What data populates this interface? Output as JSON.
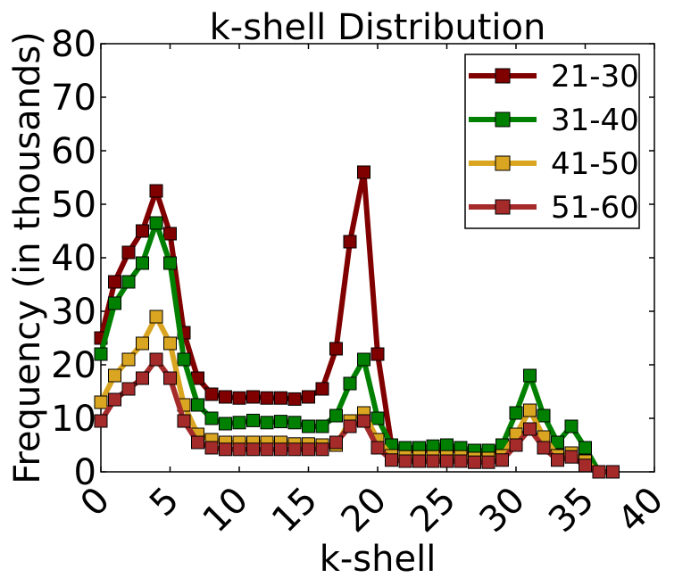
{
  "chart_data": {
    "type": "line",
    "title": "k-shell Distribution",
    "xlabel": "k-shell",
    "ylabel": "Frequency (in thousands)",
    "xlim": [
      0,
      40
    ],
    "ylim": [
      0,
      80
    ],
    "xticks": [
      "0",
      "5",
      "10",
      "15",
      "20",
      "25",
      "30",
      "35",
      "40"
    ],
    "yticks": [
      "0",
      "10",
      "20",
      "30",
      "40",
      "50",
      "60",
      "70",
      "80"
    ],
    "grid": false,
    "legend_position": "top-right",
    "x": [
      0,
      1,
      2,
      3,
      4,
      5,
      6,
      7,
      8,
      9,
      10,
      11,
      12,
      13,
      14,
      15,
      16,
      17,
      18,
      19,
      20,
      21,
      22,
      23,
      24,
      25,
      26,
      27,
      28,
      29,
      30,
      31,
      32,
      33,
      34,
      35,
      36,
      37
    ],
    "series": [
      {
        "name": "21-30",
        "color": "#800000",
        "values": [
          25,
          35.5,
          41,
          45,
          52.5,
          44.5,
          26,
          17.5,
          14.5,
          14,
          13.8,
          14,
          13.8,
          13.8,
          13.6,
          14,
          15.5,
          23,
          43,
          56,
          22,
          5,
          4,
          4,
          4,
          4,
          4,
          3.5,
          3.5,
          4,
          6,
          8,
          5,
          3,
          3,
          2,
          0,
          0
        ]
      },
      {
        "name": "31-40",
        "color": "#008000",
        "values": [
          22,
          31.5,
          35.5,
          39,
          46.5,
          39,
          21,
          12.5,
          10,
          9,
          9.2,
          9.6,
          9.2,
          9.4,
          9.2,
          8.5,
          8.5,
          10.5,
          16.5,
          21,
          10,
          5,
          4.5,
          4.5,
          4.8,
          5,
          4.5,
          4,
          4,
          5,
          11,
          18,
          10.5,
          5.5,
          8.5,
          4.5,
          0,
          0
        ]
      },
      {
        "name": "41-50",
        "color": "#DAA520",
        "values": [
          13,
          18,
          21,
          24,
          29,
          24,
          12.5,
          7,
          6,
          5.5,
          5.5,
          5.5,
          5.5,
          5.5,
          5.2,
          5.2,
          5,
          5,
          9.5,
          11,
          6,
          3,
          2.8,
          2.8,
          2.8,
          2.8,
          2.8,
          2.5,
          2.5,
          3,
          7,
          11.5,
          6.5,
          3,
          3.5,
          2,
          0,
          0
        ]
      },
      {
        "name": "51-60",
        "color": "#A52A2A",
        "values": [
          9.5,
          13.5,
          15.5,
          17.5,
          21,
          17.5,
          9.5,
          5.5,
          4.5,
          4.2,
          4.2,
          4.2,
          4.2,
          4.2,
          4.2,
          4.2,
          4.2,
          5.5,
          8.5,
          9.5,
          4.5,
          2.2,
          2,
          2,
          2,
          2,
          2,
          1.8,
          1.8,
          2.2,
          5,
          8,
          4.5,
          2.2,
          2.8,
          1.2,
          0,
          0
        ]
      }
    ]
  }
}
